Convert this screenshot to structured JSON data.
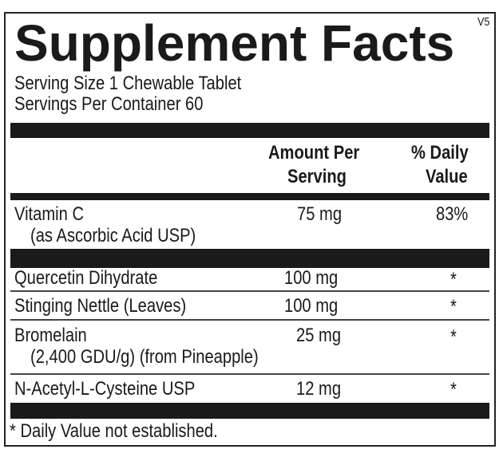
{
  "title": "Supplement Facts",
  "version": "V5",
  "serving_size": "Serving Size 1 Chewable Tablet",
  "servings_per_container": "Servings Per Container 60",
  "headers": {
    "amount_line1": "Amount Per",
    "amount_line2": "Serving",
    "dv_line1": "% Daily",
    "dv_line2": "Value"
  },
  "rows": [
    {
      "name": "Vitamin C",
      "sub": "(as Ascorbic Acid USP)",
      "amount": "75 mg",
      "dv": "83%"
    },
    {
      "name": "Quercetin Dihydrate",
      "amount": "100 mg",
      "dv": "*"
    },
    {
      "name": "Stinging Nettle (Leaves)",
      "amount": "100 mg",
      "dv": "*"
    },
    {
      "name": "Bromelain",
      "sub": "(2,400 GDU/g) (from Pineapple)",
      "amount": "25 mg",
      "dv": "*"
    },
    {
      "name": "N-Acetyl-L-Cysteine USP",
      "amount": "12 mg",
      "dv": "*"
    }
  ],
  "footnote": "* Daily Value not established."
}
